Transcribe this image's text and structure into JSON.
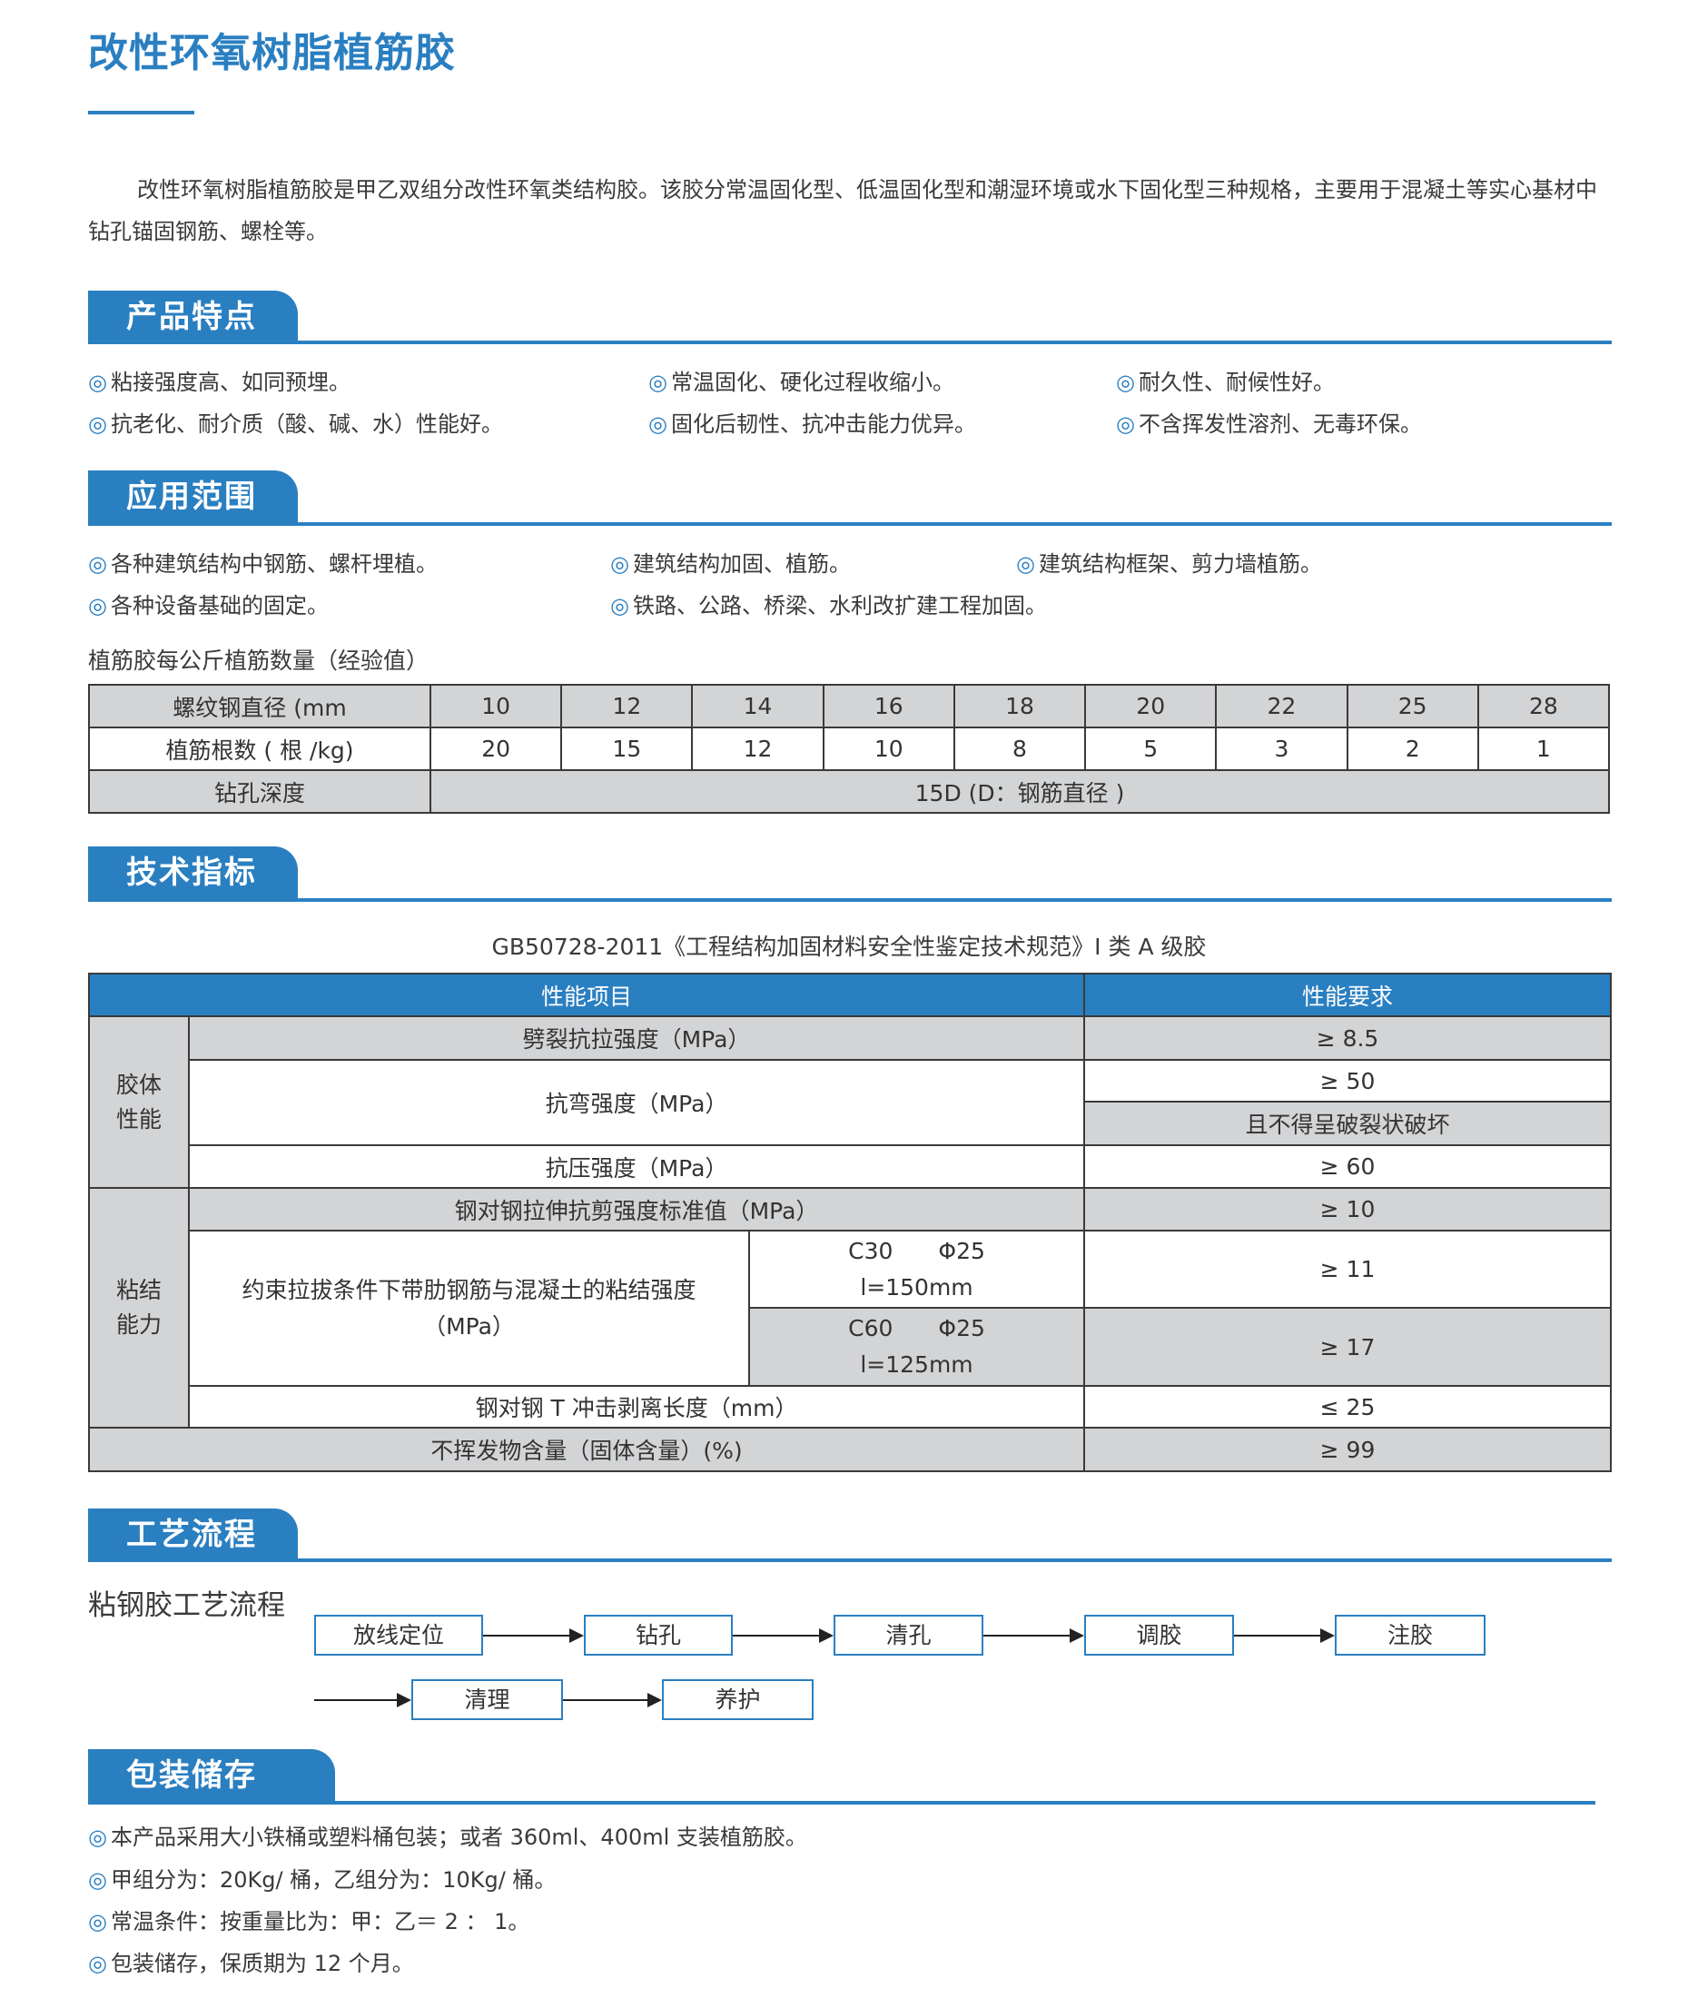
{
  "title": "改性环氧树脂植筋胶",
  "intro": "改性环氧树脂植筋胶是甲乙双组分改性环氧类结构胶。该胶分常温固化型、低温固化型和潮湿环境或水下固化型三种规格，主要用于混凝土等实心基材中钻孔锚固钢筋、螺栓等。",
  "bullet": "◎",
  "colors": {
    "accent": "#2a7fc1",
    "row_grey": "#d3d4d6"
  },
  "features": {
    "heading": "产品特点",
    "items": [
      "粘接强度高、如同预埋。",
      "常温固化、硬化过程收缩小。",
      "耐久性、耐候性好。",
      "抗老化、耐介质（酸、碱、水）性能好。",
      "固化后韧性、抗冲击能力优异。",
      "不含挥发性溶剂、无毒环保。"
    ]
  },
  "applications": {
    "heading": "应用范围",
    "items": [
      "各种建筑结构中钢筋、螺杆埋植。",
      "建筑结构加固、植筋。",
      "建筑结构框架、剪力墙植筋。",
      "各种设备基础的固定。",
      "铁路、公路、桥梁、水利改扩建工程加固。"
    ],
    "table_caption": "植筋胶每公斤植筋数量（经验值）",
    "table": {
      "row1_label": "螺纹钢直径 (mm",
      "diameters": [
        "10",
        "12",
        "14",
        "16",
        "18",
        "20",
        "22",
        "25",
        "28"
      ],
      "row2_label": "植筋根数 ( 根 /kg)",
      "counts": [
        "20",
        "15",
        "12",
        "10",
        "8",
        "5",
        "3",
        "2",
        "1"
      ],
      "row3_label": "钻孔深度",
      "depth": "15D (D：钢筋直径 )"
    }
  },
  "specs": {
    "heading": "技术指标",
    "caption": "GB50728-2011《工程结构加固材料安全性鉴定技术规范》I 类 A 级胶",
    "header_item": "性能项目",
    "header_req": "性能要求",
    "group1": "胶体性能",
    "group2": "粘结能力",
    "rows": {
      "split_tensile": "劈裂抗拉强度（MPa）",
      "split_tensile_req": "≥ 8.5",
      "flexural": "抗弯强度（MPa）",
      "flexural_req": "≥ 50",
      "flexural_req2": "且不得呈破裂状破坏",
      "compressive": "抗压强度（MPa）",
      "compressive_req": "≥ 60",
      "shear": "钢对钢拉伸抗剪强度标准值（MPa）",
      "shear_req": "≥ 10",
      "bond": "约束拉拔条件下带肋钢筋与混凝土的粘结强度（MPa）",
      "c30": "C30　　Φ25",
      "c30_l": "l=150mm",
      "c30_req": "≥ 11",
      "c60": "C60　　Φ25",
      "c60_l": "l=125mm",
      "c60_req": "≥ 17",
      "peel": "钢对钢 T 冲击剥离长度（mm）",
      "peel_req": "≤ 25",
      "nonvolatile": "不挥发物含量（固体含量）(%)",
      "nonvolatile_req": "≥ 99"
    }
  },
  "process": {
    "heading": "工艺流程",
    "subtitle": "粘钢胶工艺流程",
    "steps": [
      "放线定位",
      "钻孔",
      "清孔",
      "调胶",
      "注胶",
      "清理",
      "养护"
    ]
  },
  "packaging": {
    "heading": "包装储存",
    "items": [
      "本产品采用大小铁桶或塑料桶包装；或者 360ml、400ml 支装植筋胶。",
      "甲组分为：20Kg/ 桶，乙组分为：10Kg/ 桶。",
      "常温条件：按重量比为：甲：乙＝ 2 ： 1。",
      "包装储存，保质期为 12 个月。"
    ]
  }
}
